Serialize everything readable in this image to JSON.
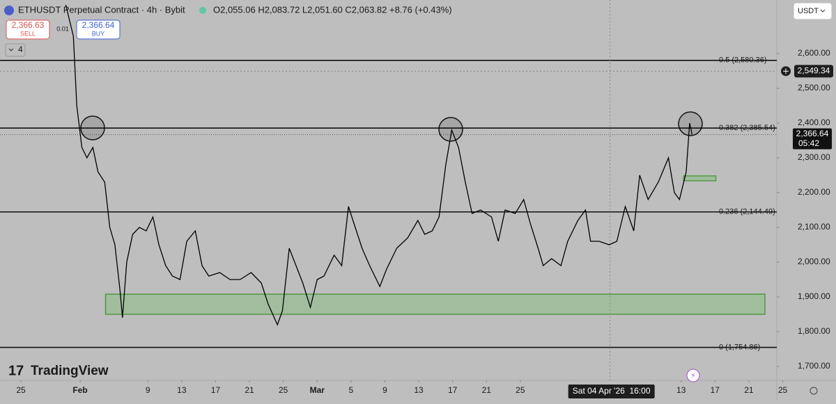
{
  "chart_data": {
    "type": "line",
    "title": "ETHUSDT Perpetual Contract · 4h · Bybit",
    "ohlc": "O2,055.06 H2,083.72 L2,051.60 C2,063.82 +8.76 (+0.43%)",
    "color": "#000000",
    "x": [
      5.3,
      6.2,
      6.6,
      7.2,
      7.8,
      8.5,
      9.1,
      9.9,
      10.5,
      11.1,
      11.7,
      12.0,
      12.5,
      13.2,
      14.0,
      14.8,
      15.6,
      16.3,
      17.1,
      17.9,
      18.8,
      19.6,
      20.6,
      21.4,
      22.2,
      23.5,
      24.7,
      25.9,
      27.2,
      28.4,
      29.2,
      30.3,
      30.9,
      31.7,
      32.5,
      33.3,
      34.2,
      35.0,
      35.8,
      37.0,
      37.9,
      38.7,
      39.5,
      40.3,
      41.2,
      42.4,
      43.2,
      44.4,
      45.7,
      46.9,
      47.7,
      48.6,
      49.4,
      50.2,
      50.9,
      51.7,
      52.5,
      53.3,
      54.3,
      55.6,
      56.4,
      57.2,
      58.4,
      59.4,
      60.2,
      61.1,
      61.7,
      62.7,
      63.8,
      64.6,
      65.8,
      66.7,
      67.3,
      68.3,
      69.5,
      70.4,
      71.4,
      72.4,
      73.1,
      74.1,
      75.3,
      76.5,
      77.2,
      77.8,
      78.6,
      79.0,
      79.3
    ],
    "values": [
      2740,
      2650,
      2450,
      2330,
      2300,
      2330,
      2260,
      2230,
      2100,
      2050,
      1920,
      1840,
      2000,
      2080,
      2100,
      2090,
      2130,
      2050,
      1990,
      1960,
      1950,
      2060,
      2090,
      1990,
      1960,
      1970,
      1950,
      1950,
      1970,
      1940,
      1880,
      1820,
      1860,
      2040,
      1990,
      1940,
      1870,
      1950,
      1960,
      2020,
      1990,
      2160,
      2100,
      2040,
      1990,
      1930,
      1980,
      2040,
      2070,
      2120,
      2080,
      2090,
      2130,
      2280,
      2380,
      2330,
      2230,
      2140,
      2150,
      2130,
      2060,
      2150,
      2140,
      2180,
      2110,
      2040,
      1990,
      2010,
      1990,
      2060,
      2120,
      2150,
      2060,
      2060,
      2050,
      2060,
      2160,
      2090,
      2250,
      2180,
      2230,
      2300,
      2200,
      2180,
      2260,
      2400,
      2366.64
    ],
    "xlim": [
      -2.47,
      89.3
    ],
    "ylim": [
      1660,
      2754
    ],
    "xticks": [
      {
        "value": 0,
        "label": "25"
      },
      {
        "value": 7,
        "label": "Feb"
      },
      {
        "value": 15,
        "label": "9"
      },
      {
        "value": 19,
        "label": "13"
      },
      {
        "value": 23,
        "label": "17"
      },
      {
        "value": 27,
        "label": "21"
      },
      {
        "value": 31,
        "label": "25"
      },
      {
        "value": 35,
        "label": "Mar"
      },
      {
        "value": 39,
        "label": "5"
      },
      {
        "value": 43,
        "label": "9"
      },
      {
        "value": 47,
        "label": "13"
      },
      {
        "value": 51,
        "label": "17"
      },
      {
        "value": 55,
        "label": "21"
      },
      {
        "value": 59,
        "label": "25"
      },
      {
        "value": 78,
        "label": "13"
      },
      {
        "value": 82,
        "label": "17"
      },
      {
        "value": 86,
        "label": "21"
      },
      {
        "value": 90,
        "label": "25"
      }
    ],
    "yticks": [
      {
        "value": 1700,
        "label": "1,700.00"
      },
      {
        "value": 1800,
        "label": "1,800.00"
      },
      {
        "value": 1900,
        "label": "1,900.00"
      },
      {
        "value": 2000,
        "label": "2,000.00"
      },
      {
        "value": 2100,
        "label": "2,100.00"
      },
      {
        "value": 2200,
        "label": "2,200.00"
      },
      {
        "value": 2300,
        "label": "2,300.00"
      },
      {
        "value": 2400,
        "label": "2,400.00"
      },
      {
        "value": 2500,
        "label": "2,500.00"
      },
      {
        "value": 2600,
        "label": "2,600.00"
      }
    ],
    "levels": [
      {
        "value": 2580.36,
        "label": "0.5 (2,580.36)"
      },
      {
        "value": 2385.54,
        "label": "0.382 (2,385.54)"
      },
      {
        "value": 2144.49,
        "label": "0.236 (2,144.49)"
      },
      {
        "value": 1754.86,
        "label": "0 (1,754.86)"
      }
    ],
    "zones": [
      {
        "x": [
          10.0,
          87.9
        ],
        "y": [
          1850,
          1908
        ]
      },
      {
        "x": [
          78.3,
          82.1
        ],
        "y": [
          2234,
          2248
        ]
      }
    ],
    "last_price": {
      "value": 2366.64,
      "label": "2,366.64",
      "countdown": "05:42"
    },
    "crosshair_y": {
      "value": 2549.34,
      "label": "2,549.34"
    },
    "crosshair_x": {
      "value": 69.6,
      "label": "Sat 04 Apr '26  16:00"
    }
  },
  "ui": {
    "sell_price": "2,366.63",
    "sell_label": "SELL",
    "spread": "0.01",
    "buy_price": "2,366.64",
    "buy_label": "BUY",
    "indicators": "4",
    "currency": "USDT",
    "brand": "TradingView"
  }
}
